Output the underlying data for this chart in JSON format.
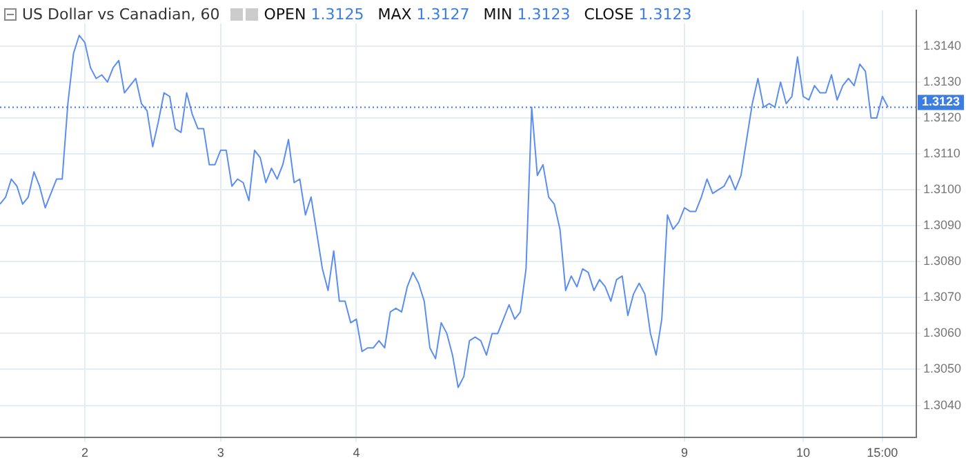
{
  "chart_data": {
    "type": "line",
    "title": "US Dollar vs Canadian, 60",
    "annotations": [
      "OPEN 1.3125",
      "MAX 1.3127",
      "MIN 1.3123",
      "CLOSE 1.3123"
    ],
    "categories": [
      null,
      null,
      null,
      null,
      null,
      null,
      null,
      null,
      null,
      null,
      null,
      null,
      null,
      null,
      null,
      "2",
      null,
      null,
      null,
      null,
      null,
      null,
      null,
      null,
      null,
      null,
      null,
      null,
      null,
      null,
      null,
      null,
      null,
      null,
      null,
      null,
      null,
      null,
      null,
      "3",
      null,
      null,
      null,
      null,
      null,
      null,
      null,
      null,
      null,
      null,
      null,
      null,
      null,
      null,
      null,
      null,
      null,
      null,
      null,
      null,
      null,
      null,
      null,
      "4",
      null,
      null,
      null,
      null,
      null,
      null,
      null,
      null,
      null,
      null,
      null,
      null,
      null,
      null,
      null,
      null,
      null,
      null,
      null,
      null,
      null,
      null,
      null,
      null,
      null,
      null,
      null,
      null,
      null,
      null,
      null,
      null,
      null,
      null,
      null,
      null,
      null,
      null,
      null,
      null,
      null,
      null,
      null,
      null,
      null,
      null,
      null,
      null,
      null,
      null,
      null,
      null,
      null,
      null,
      null,
      null,
      null,
      "9",
      null,
      null,
      null,
      null,
      null,
      null,
      null,
      null,
      null,
      null,
      null,
      null,
      null,
      null,
      null,
      null,
      null,
      null,
      null,
      null,
      "10",
      null,
      null,
      null,
      null,
      null,
      null,
      null,
      null,
      null,
      null,
      null,
      null,
      null,
      "15:00",
      null
    ],
    "series": [
      {
        "color": "#5b8def",
        "values": [
          1.3096,
          1.3098,
          1.3103,
          1.3101,
          1.3096,
          1.3098,
          1.3105,
          1.3101,
          1.3095,
          1.3099,
          1.3103,
          1.3103,
          1.3124,
          1.3138,
          1.3143,
          1.3141,
          1.3134,
          1.3131,
          1.3132,
          1.313,
          1.3134,
          1.3136,
          1.3127,
          1.3129,
          1.3131,
          1.3124,
          1.3122,
          1.3112,
          1.3119,
          1.3127,
          1.3126,
          1.3117,
          1.3116,
          1.3127,
          1.3121,
          1.3117,
          1.3117,
          1.3107,
          1.3107,
          1.3111,
          1.3111,
          1.3101,
          1.3103,
          1.3102,
          1.3097,
          1.3111,
          1.3109,
          1.3102,
          1.3106,
          1.3103,
          1.3107,
          1.3114,
          1.3102,
          1.3103,
          1.3093,
          1.3098,
          1.3088,
          1.3078,
          1.3072,
          1.3083,
          1.3069,
          1.3069,
          1.3063,
          1.3064,
          1.3055,
          1.3056,
          1.3056,
          1.3058,
          1.3056,
          1.3066,
          1.3067,
          1.3066,
          1.3073,
          1.3077,
          1.3074,
          1.3069,
          1.3056,
          1.3053,
          1.3063,
          1.306,
          1.3054,
          1.3045,
          1.3048,
          1.3058,
          1.3059,
          1.3058,
          1.3054,
          1.306,
          1.306,
          1.3064,
          1.3068,
          1.3064,
          1.3066,
          1.3078,
          1.3123,
          1.3104,
          1.3107,
          1.3098,
          1.3096,
          1.3089,
          1.3072,
          1.3076,
          1.3073,
          1.3078,
          1.3077,
          1.3072,
          1.3075,
          1.3073,
          1.3069,
          1.3075,
          1.3076,
          1.3065,
          1.3071,
          1.3074,
          1.3071,
          1.306,
          1.3054,
          1.3064,
          1.3093,
          1.3089,
          1.3091,
          1.3095,
          1.3094,
          1.3094,
          1.3098,
          1.3103,
          1.3099,
          1.31,
          1.3101,
          1.3104,
          1.31,
          1.3104,
          1.3114,
          1.3124,
          1.3131,
          1.3123,
          1.3124,
          1.3123,
          1.313,
          1.3124,
          1.3126,
          1.3137,
          1.3126,
          1.3125,
          1.3129,
          1.3127,
          1.3127,
          1.3132,
          1.3125,
          1.3129,
          1.3131,
          1.3129,
          1.3135,
          1.3133,
          1.312,
          1.312,
          1.3126,
          1.3123
        ]
      }
    ],
    "ylim": [
      1.3031,
      1.315
    ],
    "yticks": [
      {
        "value": 1.304,
        "label": "1.3040"
      },
      {
        "value": 1.305,
        "label": "1.3050"
      },
      {
        "value": 1.306,
        "label": "1.3060"
      },
      {
        "value": 1.307,
        "label": "1.3070"
      },
      {
        "value": 1.308,
        "label": "1.3080"
      },
      {
        "value": 1.309,
        "label": "1.3090"
      },
      {
        "value": 1.31,
        "label": "1.3100"
      },
      {
        "value": 1.311,
        "label": "1.3110"
      },
      {
        "value": 1.312,
        "label": "1.3120"
      },
      {
        "value": 1.313,
        "label": "1.3130"
      },
      {
        "value": 1.314,
        "label": "1.3140"
      }
    ],
    "ref_lines": [
      {
        "axis": "y",
        "value": 1.3123,
        "label": "1.3123",
        "color": "#3b7de0",
        "line_style": "dotted"
      }
    ],
    "grid": true,
    "legend": false,
    "marker": "none",
    "line_style": "solid"
  }
}
